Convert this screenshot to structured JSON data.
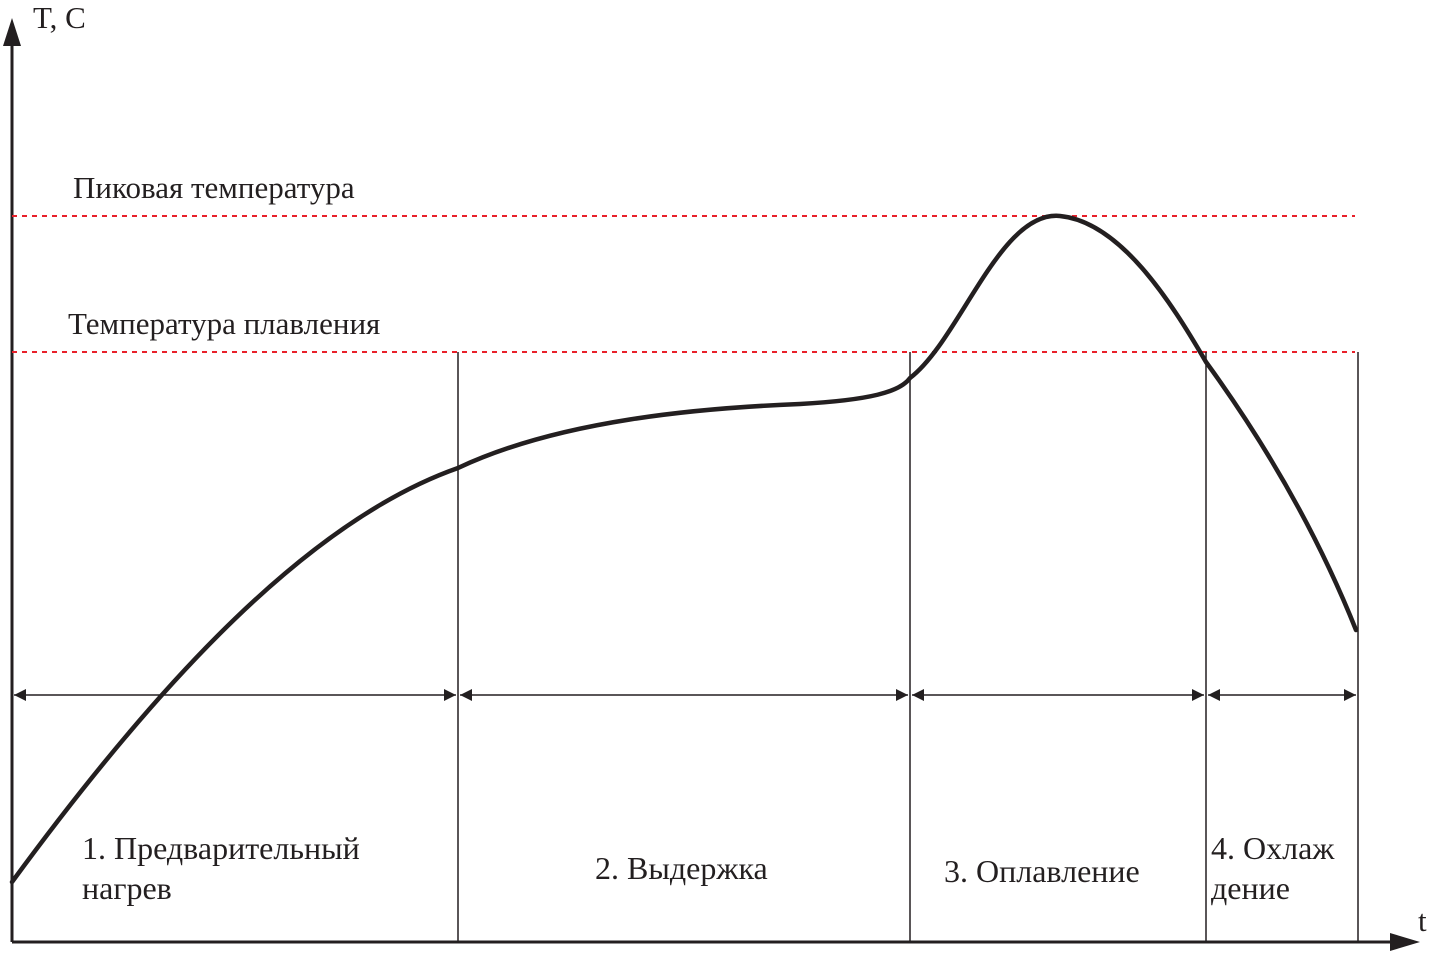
{
  "axes": {
    "y_label": "T, C",
    "x_label": "t"
  },
  "levels": {
    "peak_label": "Пиковая температура",
    "melt_label": "Температура плавления"
  },
  "phases": [
    {
      "line1": "1. Предварительный",
      "line2": "нагрев"
    },
    {
      "line1": "2. Выдержка"
    },
    {
      "line1": "3. Оплавление"
    },
    {
      "line1": "4. Охлаж",
      "line2": "дение"
    }
  ],
  "colors": {
    "ink": "#231f20",
    "threshold": "#e8202a",
    "background": "#ffffff"
  }
}
